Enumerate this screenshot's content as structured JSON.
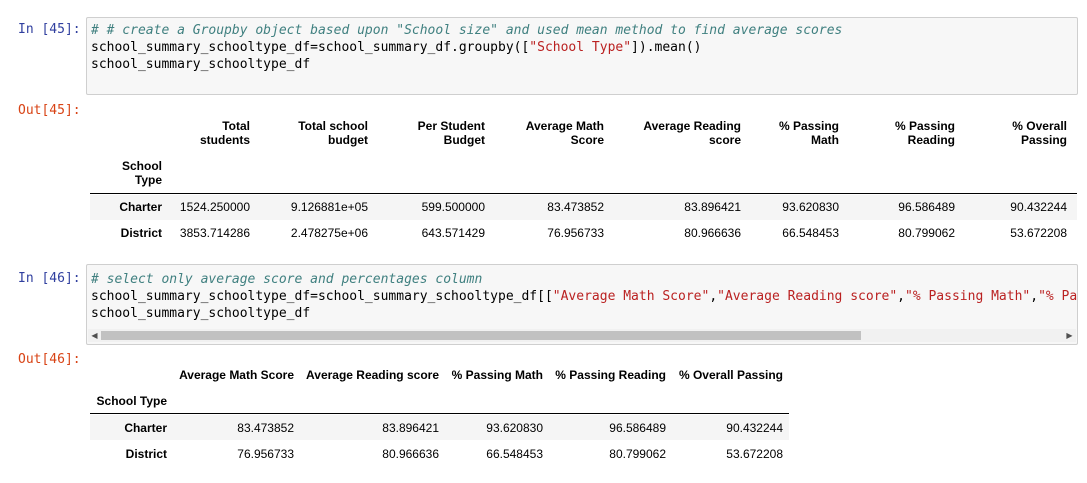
{
  "cell45": {
    "in_prompt": "In [45]:",
    "out_prompt": "Out[45]:",
    "code": {
      "comment": "# # create a Groupby object based upon \"School size\" and used mean method to find average scores",
      "line2_pre": "school_summary_schooltype_df=school_summary_df.groupby([",
      "line2_str": "\"School Type\"",
      "line2_post": "]).mean()",
      "line3": "school_summary_schooltype_df"
    },
    "table": {
      "columns": [
        [
          "Total",
          "students"
        ],
        [
          "Total school",
          "budget"
        ],
        [
          "Per Student",
          "Budget"
        ],
        [
          "Average Math",
          "Score"
        ],
        [
          "Average Reading",
          "score"
        ],
        [
          "% Passing",
          "Math"
        ],
        [
          "% Passing",
          "Reading"
        ],
        [
          "% Overall",
          "Passing"
        ]
      ],
      "index_name": [
        "School",
        "Type"
      ],
      "rows": [
        {
          "index": "Charter",
          "values": [
            "1524.250000",
            "9.126881e+05",
            "599.500000",
            "83.473852",
            "83.896421",
            "93.620830",
            "96.586489",
            "90.432244"
          ]
        },
        {
          "index": "District",
          "values": [
            "3853.714286",
            "2.478275e+06",
            "643.571429",
            "76.956733",
            "80.966636",
            "66.548453",
            "80.799062",
            "53.672208"
          ]
        }
      ]
    }
  },
  "cell46": {
    "in_prompt": "In [46]:",
    "out_prompt": "Out[46]:",
    "code": {
      "comment": "# select only average score and percentages column",
      "line2_pre": "school_summary_schooltype_df=school_summary_schooltype_df[[",
      "line2_s1": "\"Average Math Score\"",
      "line2_s2": "\"Average Reading score\"",
      "line2_s3": "\"% Passing Math\"",
      "line2_s4": "\"% Passing Reading\"",
      "line3": "school_summary_schooltype_df"
    },
    "table": {
      "columns": [
        "Average Math Score",
        "Average Reading score",
        "% Passing Math",
        "% Passing Reading",
        "% Overall Passing"
      ],
      "index_name": "School Type",
      "rows": [
        {
          "index": "Charter",
          "values": [
            "83.473852",
            "83.896421",
            "93.620830",
            "96.586489",
            "90.432244"
          ]
        },
        {
          "index": "District",
          "values": [
            "76.956733",
            "80.966636",
            "66.548453",
            "80.799062",
            "53.672208"
          ]
        }
      ]
    }
  }
}
